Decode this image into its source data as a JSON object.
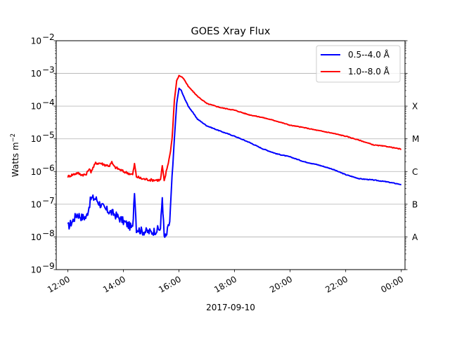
{
  "chart_data": {
    "type": "line",
    "title": "GOES Xray Flux",
    "xlabel": "2017-09-10",
    "ylabel": "Watts m",
    "ylabel_exponent": "−2",
    "yscale": "log",
    "ylim": [
      1e-09,
      0.01
    ],
    "y_tick_labels": [
      "10",
      "10",
      "10",
      "10",
      "10",
      "10",
      "10",
      "10"
    ],
    "y_tick_exponents": [
      "−9",
      "−8",
      "−7",
      "−6",
      "−5",
      "−4",
      "−3",
      "−2"
    ],
    "y_ticks": [
      1e-09,
      1e-08,
      1e-07,
      1e-06,
      1e-05,
      0.0001,
      0.001,
      0.01
    ],
    "xlim": [
      "11:35",
      "24:08"
    ],
    "x_ticks": [
      "12:00",
      "14:00",
      "16:00",
      "18:00",
      "20:00",
      "22:00",
      "24:00"
    ],
    "x_tick_labels": [
      "12:00",
      "14:00",
      "16:00",
      "18:00",
      "20:00",
      "22:00",
      "00:00"
    ],
    "grid": "horizontal at major y ticks",
    "legend_position": "upper right",
    "flare_classes": [
      {
        "label": "A",
        "level": 1e-08
      },
      {
        "label": "B",
        "level": 1e-07
      },
      {
        "label": "C",
        "level": 1e-06
      },
      {
        "label": "M",
        "level": 1e-05
      },
      {
        "label": "X",
        "level": 0.0001
      }
    ],
    "series": [
      {
        "name": "0.5--4.0 Å",
        "color": "#0000ff",
        "x": [
          "12:00",
          "12:10",
          "12:20",
          "12:30",
          "12:40",
          "12:50",
          "13:00",
          "13:10",
          "13:20",
          "13:30",
          "13:40",
          "14:00",
          "14:20",
          "14:24",
          "14:28",
          "14:40",
          "15:00",
          "15:20",
          "15:24",
          "15:28",
          "15:32",
          "15:40",
          "15:45",
          "15:50",
          "15:55",
          "16:00",
          "16:05",
          "16:10",
          "16:20",
          "16:40",
          "17:00",
          "17:30",
          "18:00",
          "18:30",
          "19:00",
          "19:30",
          "20:00",
          "20:30",
          "21:00",
          "21:30",
          "22:00",
          "22:30",
          "23:00",
          "23:30",
          "24:00"
        ],
        "y": [
          2e-08,
          3e-08,
          5e-08,
          4e-08,
          4e-08,
          1.5e-07,
          1.5e-07,
          1e-07,
          7e-08,
          6e-08,
          5e-08,
          3e-08,
          1.8e-08,
          2.8e-07,
          1.8e-08,
          1.5e-08,
          1.4e-08,
          1.8e-08,
          1.7e-07,
          1e-08,
          1e-08,
          3e-08,
          6e-07,
          1e-05,
          0.00012,
          0.00035,
          0.0003,
          0.0002,
          0.0001,
          4e-05,
          2.5e-05,
          1.7e-05,
          1.2e-05,
          8e-06,
          5e-06,
          3.5e-06,
          2.8e-06,
          2e-06,
          1.6e-06,
          1.2e-06,
          8e-07,
          6e-07,
          5.5e-07,
          4.8e-07,
          4e-07
        ]
      },
      {
        "name": "1.0--8.0 Å",
        "color": "#ff0000",
        "x": [
          "12:00",
          "12:10",
          "12:20",
          "12:30",
          "12:40",
          "12:45",
          "12:50",
          "13:00",
          "13:10",
          "13:20",
          "13:30",
          "13:35",
          "13:40",
          "14:00",
          "14:20",
          "14:24",
          "14:28",
          "14:40",
          "15:00",
          "15:20",
          "15:24",
          "15:28",
          "15:40",
          "15:45",
          "15:50",
          "15:55",
          "16:00",
          "16:05",
          "16:10",
          "16:20",
          "16:40",
          "17:00",
          "17:30",
          "18:00",
          "18:30",
          "19:00",
          "19:30",
          "20:00",
          "20:30",
          "21:00",
          "21:30",
          "22:00",
          "22:30",
          "23:00",
          "23:30",
          "24:00"
        ],
        "y": [
          7e-07,
          8e-07,
          9e-07,
          8e-07,
          8e-07,
          1.2e-06,
          1e-06,
          1.8e-06,
          1.8e-06,
          1.6e-06,
          1.5e-06,
          1.9e-06,
          1.4e-06,
          1e-06,
          8e-07,
          1.7e-06,
          7e-07,
          6e-07,
          5.5e-07,
          5.5e-07,
          1.5e-06,
          5e-07,
          3e-06,
          1e-05,
          0.00015,
          0.0006,
          0.00085,
          0.0008,
          0.0007,
          0.0004,
          0.0002,
          0.00012,
          9e-05,
          7.5e-05,
          5.5e-05,
          4.5e-05,
          3.5e-05,
          2.6e-05,
          2.2e-05,
          1.8e-05,
          1.5e-05,
          1.2e-05,
          9e-06,
          6.5e-06,
          5.8e-06,
          4.8e-06
        ]
      }
    ]
  }
}
